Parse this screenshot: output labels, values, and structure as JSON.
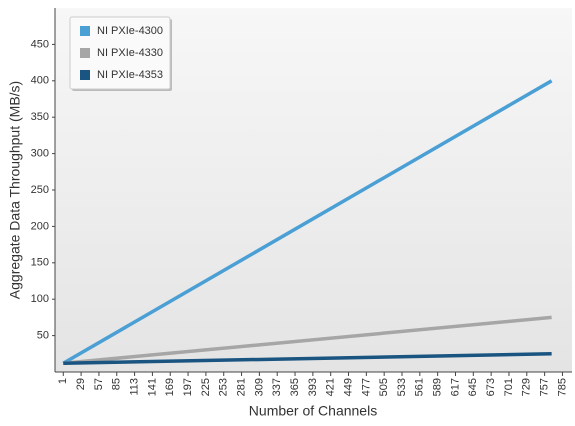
{
  "chart_data": {
    "type": "line",
    "xlabel": "Number of Channels",
    "ylabel": "Aggregate Data Throughput (MB/s)",
    "x": [
      1,
      768
    ],
    "series": [
      {
        "name": "NI PXIe-4300",
        "color": "#4a9fd5",
        "values": [
          12,
          400
        ]
      },
      {
        "name": "NI PXIe-4330",
        "color": "#a6a6a6",
        "values": [
          12,
          75
        ]
      },
      {
        "name": "NI PXIe-4353",
        "color": "#1a5480",
        "values": [
          12,
          25
        ]
      }
    ],
    "xlim": [
      -12,
      800
    ],
    "ylim": [
      0,
      500
    ],
    "xticks": [
      1,
      29,
      57,
      85,
      113,
      141,
      169,
      197,
      225,
      253,
      281,
      309,
      337,
      365,
      393,
      421,
      449,
      477,
      505,
      533,
      561,
      589,
      617,
      645,
      673,
      701,
      729,
      757,
      785
    ],
    "yticks": [
      50,
      100,
      150,
      200,
      250,
      300,
      350,
      400,
      450
    ],
    "grid": false,
    "legend": "upper-left"
  }
}
